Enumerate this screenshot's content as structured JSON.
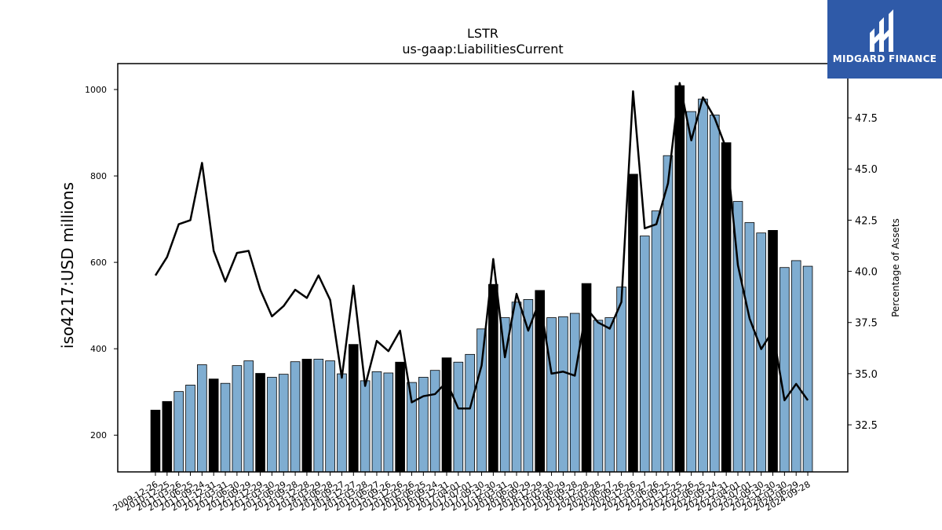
{
  "chart_data": {
    "type": "bar",
    "title": "LSTR",
    "subtitle": "us-gaap:LiabilitiesCurrent",
    "ylabel": "iso4217:USD  millions",
    "y2label": "Percentage of Assets",
    "ylim": [
      115,
      1060
    ],
    "y2lim": [
      30.2,
      50.15
    ],
    "yticks": [
      200,
      400,
      600,
      800,
      1000
    ],
    "y2ticks": [
      "32.5",
      "35.0",
      "37.5",
      "40.0",
      "42.5",
      "45.0",
      "47.5"
    ],
    "categories": [
      "2009-12-26",
      "2010-12-25",
      "2011-03-26",
      "2011-06-25",
      "2011-09-24",
      "2011-12-31",
      "2012-03-31",
      "2012-06-30",
      "2012-09-29",
      "2012-12-29",
      "2013-03-30",
      "2013-06-29",
      "2013-09-28",
      "2013-12-28",
      "2014-03-29",
      "2014-06-28",
      "2014-09-27",
      "2014-12-27",
      "2015-03-28",
      "2015-06-27",
      "2015-09-26",
      "2015-12-26",
      "2016-03-26",
      "2016-06-25",
      "2016-09-24",
      "2016-12-31",
      "2017-04-01",
      "2017-07-01",
      "2017-09-30",
      "2017-12-30",
      "2018-03-31",
      "2018-06-30",
      "2018-09-29",
      "2018-12-29",
      "2019-03-30",
      "2019-06-29",
      "2019-09-28",
      "2019-12-28",
      "2020-03-28",
      "2020-06-27",
      "2020-09-26",
      "2020-12-26",
      "2021-03-27",
      "2021-06-26",
      "2021-09-25",
      "2021-12-25",
      "2022-03-26",
      "2022-06-25",
      "2022-09-24",
      "2022-12-31",
      "2023-04-01",
      "2023-07-01",
      "2023-09-30",
      "2023-12-30",
      "2024-03-30",
      "2024-06-29",
      "2024-09-28"
    ],
    "series": [
      {
        "values": [
          258,
          278,
          301,
          316,
          363,
          330,
          320,
          361,
          372,
          343,
          334,
          341,
          370,
          376,
          376,
          372,
          342,
          410,
          326,
          347,
          344,
          369,
          322,
          334,
          350,
          379,
          369,
          387,
          446,
          549,
          472,
          508,
          514,
          535,
          472,
          474,
          482,
          551,
          466,
          472,
          543,
          804,
          661,
          719,
          847,
          1009,
          949,
          978,
          941,
          877,
          741,
          692,
          668,
          674,
          588,
          604,
          591
        ],
        "highlight": [
          true,
          true,
          false,
          false,
          false,
          true,
          false,
          false,
          false,
          true,
          false,
          false,
          false,
          true,
          false,
          false,
          false,
          true,
          false,
          false,
          false,
          true,
          false,
          false,
          false,
          true,
          false,
          false,
          false,
          true,
          false,
          false,
          false,
          true,
          false,
          false,
          false,
          true,
          false,
          false,
          false,
          true,
          false,
          false,
          false,
          true,
          false,
          false,
          false,
          true,
          false,
          false,
          false,
          true,
          false,
          false,
          false
        ],
        "color": "#7fadd1",
        "highlight_color": "#000000"
      },
      {
        "type": "line",
        "axis": "right",
        "color": "#000000",
        "values": [
          39.8,
          40.7,
          42.3,
          42.5,
          45.3,
          41.0,
          39.5,
          40.9,
          41.0,
          39.1,
          37.8,
          38.3,
          39.1,
          38.7,
          39.8,
          38.6,
          34.8,
          39.3,
          34.4,
          36.6,
          36.1,
          37.1,
          33.6,
          33.9,
          34.0,
          34.6,
          33.3,
          33.3,
          35.4,
          40.6,
          35.8,
          38.9,
          37.1,
          38.6,
          35.0,
          35.1,
          34.9,
          38.2,
          37.5,
          37.2,
          38.5,
          48.8,
          42.1,
          42.3,
          44.3,
          49.2,
          46.4,
          48.5,
          47.5,
          46.0,
          40.3,
          37.7,
          36.2,
          37.1,
          33.7,
          34.5,
          33.7
        ]
      }
    ],
    "grid": false,
    "legend": "none"
  },
  "logo": {
    "text": "MIDGARD FINANCE",
    "bg_color": "#2f5aa8",
    "fg_color": "#ffffff"
  }
}
